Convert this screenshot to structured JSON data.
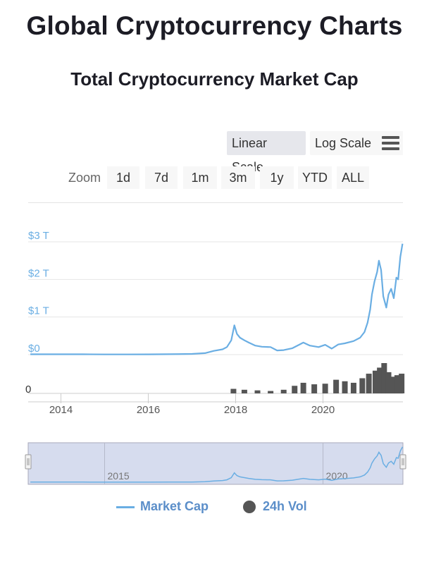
{
  "page": {
    "title": "Global Cryptocurrency Charts"
  },
  "controls": {
    "linear_label": "Linear Scale",
    "log_label": "Log Scale",
    "zoom_label": "Zoom",
    "zoom_options": [
      "1d",
      "7d",
      "1m",
      "3m",
      "1y",
      "YTD",
      "ALL"
    ]
  },
  "legend": {
    "market_cap": "Market Cap",
    "volume": "24h Vol"
  },
  "colors": {
    "market_cap": "#6aaee3",
    "volume": "#555555",
    "axis_text": "#6aaee3",
    "navigator_fill": "#d6dcee"
  },
  "chart_data": {
    "type": "line",
    "title": "Total Cryptocurrency Market Cap",
    "xlabel": "",
    "ylabel": "",
    "x_ticks": [
      "2014",
      "2016",
      "2018",
      "2020"
    ],
    "y_ticks": [
      "$0",
      "$1 T",
      "$2 T",
      "$3 T"
    ],
    "volume_ticks": [
      "0"
    ],
    "navigator_ticks": [
      "2015",
      "2020"
    ],
    "xlim": [
      2013.25,
      2021.83
    ],
    "ylim": [
      0,
      3
    ],
    "grid": true,
    "legend_position": "bottom",
    "series": [
      {
        "name": "Market Cap",
        "unit": "trillion USD",
        "x": [
          2013.3,
          2014.0,
          2014.5,
          2015.0,
          2015.5,
          2016.0,
          2016.5,
          2017.0,
          2017.3,
          2017.5,
          2017.7,
          2017.8,
          2017.9,
          2017.97,
          2018.03,
          2018.1,
          2018.2,
          2018.3,
          2018.45,
          2018.6,
          2018.8,
          2018.95,
          2019.1,
          2019.3,
          2019.45,
          2019.55,
          2019.7,
          2019.9,
          2020.05,
          2020.2,
          2020.35,
          2020.5,
          2020.7,
          2020.85,
          2020.95,
          2021.02,
          2021.08,
          2021.12,
          2021.18,
          2021.24,
          2021.28,
          2021.33,
          2021.38,
          2021.45,
          2021.5,
          2021.56,
          2021.62,
          2021.68,
          2021.72,
          2021.77,
          2021.82
        ],
        "values": [
          0.01,
          0.01,
          0.01,
          0.005,
          0.005,
          0.007,
          0.012,
          0.018,
          0.04,
          0.1,
          0.14,
          0.2,
          0.38,
          0.78,
          0.55,
          0.45,
          0.38,
          0.32,
          0.24,
          0.21,
          0.2,
          0.11,
          0.12,
          0.17,
          0.26,
          0.32,
          0.24,
          0.2,
          0.26,
          0.16,
          0.27,
          0.3,
          0.36,
          0.45,
          0.6,
          0.85,
          1.2,
          1.6,
          1.95,
          2.2,
          2.5,
          2.25,
          1.55,
          1.25,
          1.6,
          1.75,
          1.5,
          2.05,
          2.0,
          2.6,
          2.95
        ]
      },
      {
        "name": "24h Vol",
        "unit": "relative",
        "x": [
          2017.95,
          2018.2,
          2018.5,
          2018.8,
          2019.1,
          2019.35,
          2019.55,
          2019.8,
          2020.05,
          2020.3,
          2020.5,
          2020.7,
          2020.9,
          2021.05,
          2021.2,
          2021.3,
          2021.4,
          2021.5,
          2021.6,
          2021.7,
          2021.8
        ],
        "values": [
          0.15,
          0.12,
          0.1,
          0.08,
          0.12,
          0.25,
          0.35,
          0.3,
          0.32,
          0.45,
          0.4,
          0.35,
          0.5,
          0.65,
          0.75,
          0.85,
          1.0,
          0.7,
          0.55,
          0.6,
          0.65
        ]
      }
    ]
  }
}
